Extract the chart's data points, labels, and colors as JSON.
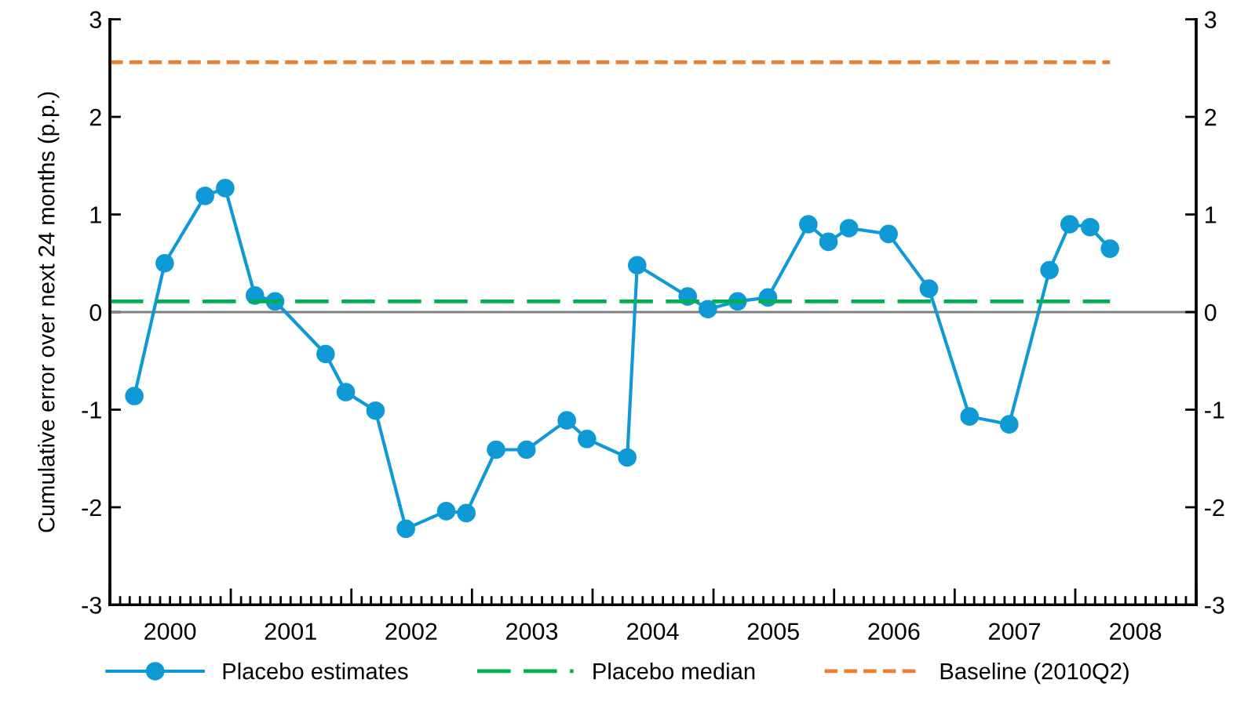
{
  "chart_data": {
    "type": "line",
    "ylabel": "Cumulative error over next 24 months (p.p.)",
    "xlim": [
      "2000-01-01",
      "2009-01-01"
    ],
    "xticks": [
      {
        "value": "2000-01-01",
        "label": null
      },
      {
        "value": "2000-07-01",
        "label": "2000"
      },
      {
        "value": "2001-01-01",
        "label": null
      },
      {
        "value": "2001-07-01",
        "label": "2001"
      },
      {
        "value": "2002-01-01",
        "label": null
      },
      {
        "value": "2002-07-01",
        "label": "2002"
      },
      {
        "value": "2003-01-01",
        "label": null
      },
      {
        "value": "2003-07-01",
        "label": "2003"
      },
      {
        "value": "2004-01-01",
        "label": null
      },
      {
        "value": "2004-07-01",
        "label": "2004"
      },
      {
        "value": "2005-01-01",
        "label": null
      },
      {
        "value": "2005-07-01",
        "label": "2005"
      },
      {
        "value": "2006-01-01",
        "label": null
      },
      {
        "value": "2006-07-01",
        "label": "2006"
      },
      {
        "value": "2007-01-01",
        "label": null
      },
      {
        "value": "2007-07-01",
        "label": "2007"
      },
      {
        "value": "2008-01-01",
        "label": null
      },
      {
        "value": "2008-07-01",
        "label": "2008"
      },
      {
        "value": "2009-01-01",
        "label": null
      }
    ],
    "ylim": [
      -3,
      3
    ],
    "yticks": [
      -3,
      -2,
      -1,
      0,
      1,
      2,
      3
    ],
    "y2lim": [
      -3,
      3
    ],
    "y2ticks": [
      -3,
      -2,
      -1,
      0,
      1,
      2,
      3
    ],
    "series": [
      {
        "name": "Placebo estimates",
        "color": "#0f9ad6",
        "marker": "circle",
        "line_style": "solid",
        "x": [
          "2000-03-15",
          "2000-06-15",
          "2000-10-15",
          "2000-12-15",
          "2001-03-15",
          "2001-05-15",
          "2001-10-15",
          "2001-12-15",
          "2002-03-15",
          "2002-06-15",
          "2002-10-15",
          "2002-12-15",
          "2003-03-15",
          "2003-06-15",
          "2003-10-15",
          "2003-12-15",
          "2004-04-15",
          "2004-05-15",
          "2004-10-15",
          "2004-12-15",
          "2005-03-15",
          "2005-06-15",
          "2005-10-15",
          "2005-12-15",
          "2006-02-15",
          "2006-06-15",
          "2006-10-15",
          "2007-02-15",
          "2007-06-15",
          "2007-10-15",
          "2007-12-15",
          "2008-02-15",
          "2008-04-15"
        ],
        "values": [
          -0.86,
          0.5,
          1.19,
          1.27,
          0.17,
          0.11,
          -0.43,
          -0.82,
          -1.01,
          -2.22,
          -2.04,
          -2.06,
          -1.41,
          -1.41,
          -1.11,
          -1.3,
          -1.49,
          0.48,
          0.16,
          0.03,
          0.11,
          0.15,
          0.9,
          0.72,
          0.86,
          0.8,
          0.24,
          -1.07,
          -1.15,
          0.43,
          0.9,
          0.87,
          0.65
        ]
      },
      {
        "name": "Placebo median",
        "color": "#00b050",
        "marker": "none",
        "line_style": "dashed",
        "x": [
          "2000-01-01",
          "2008-04-15"
        ],
        "values": [
          0.11,
          0.11
        ]
      },
      {
        "name": "Baseline (2010Q2)",
        "color": "#ed7d31",
        "marker": "none",
        "line_style": "dashed",
        "x": [
          "2000-01-01",
          "2008-04-15"
        ],
        "values": [
          2.56,
          2.56
        ]
      }
    ],
    "ref_lines": [
      {
        "axis": "y",
        "value": 0,
        "color": "#808080"
      }
    ],
    "legend": "bottom"
  }
}
